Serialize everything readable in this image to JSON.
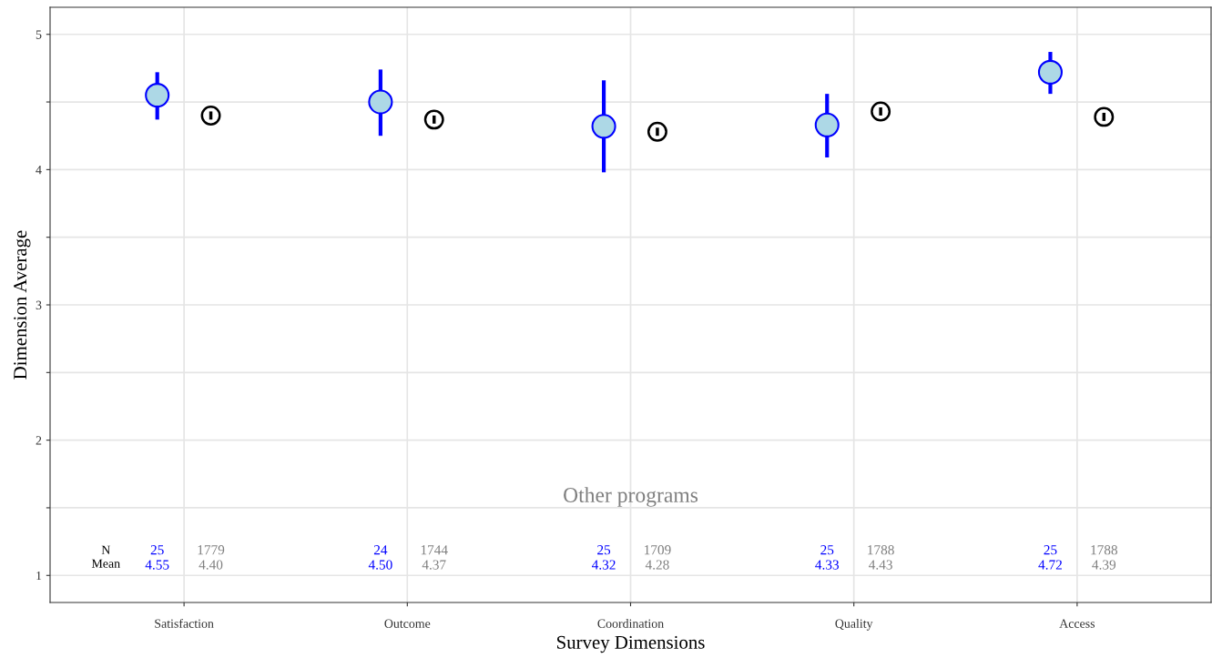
{
  "chart_data": {
    "type": "scatter",
    "xlabel": "Survey Dimensions",
    "ylabel": "Dimension Average",
    "categories": [
      "Satisfaction",
      "Outcome",
      "Coordination",
      "Quality",
      "Access"
    ],
    "series": [
      {
        "color": "#0000ff",
        "values": [
          4.55,
          4.5,
          4.32,
          4.33,
          4.72
        ],
        "errors": [
          [
            4.37,
            4.72
          ],
          [
            4.25,
            4.74
          ],
          [
            3.98,
            4.66
          ],
          [
            4.09,
            4.56
          ],
          [
            4.56,
            4.87
          ]
        ]
      },
      {
        "name": "Other programs",
        "color": "#000000",
        "values": [
          4.4,
          4.37,
          4.28,
          4.43,
          4.39
        ],
        "errors": [
          0.03,
          0.03,
          0.03,
          0.03,
          0.03
        ]
      }
    ],
    "annotations": [
      "N",
      "Mean",
      "25",
      "1779",
      "4.55",
      "4.40",
      "24",
      "1744",
      "4.50",
      "4.37",
      "25",
      "1709",
      "4.32",
      "4.28",
      "25",
      "1788",
      "4.33",
      "4.43",
      "25",
      "1788",
      "4.72",
      "4.39"
    ],
    "ylim": [
      0.8,
      5.2
    ],
    "yticks": [
      1,
      {
        "value": 1.5,
        "label": null
      },
      2,
      {
        "value": 2.5,
        "label": null
      },
      3,
      {
        "value": 3.5,
        "label": null
      },
      4,
      {
        "value": 4.5,
        "label": null
      },
      5
    ],
    "grid": true,
    "marker": "circle"
  }
}
